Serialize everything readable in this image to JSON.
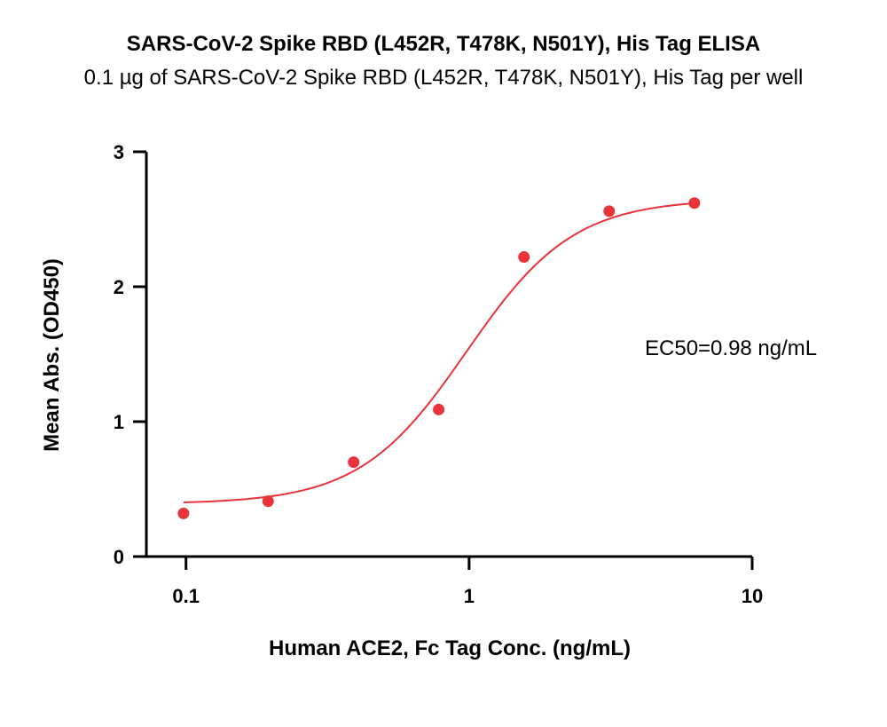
{
  "chart_data": {
    "type": "scatter",
    "title": "SARS-CoV-2 Spike RBD (L452R, T478K, N501Y), His Tag ELISA",
    "subtitle": "0.1 µg of SARS-CoV-2 Spike RBD (L452R, T478K, N501Y), His Tag per well",
    "xlabel": "Human ACE2, Fc Tag Conc. (ng/mL)",
    "ylabel": "Mean Abs. (OD450)",
    "x_scale": "log",
    "xlim": [
      0.065,
      10
    ],
    "ylim": [
      0,
      3
    ],
    "x_ticks": [
      0.1,
      1,
      10
    ],
    "x_tick_labels": [
      "0.1",
      "1",
      "10"
    ],
    "y_ticks": [
      0,
      1,
      2,
      3
    ],
    "y_tick_labels": [
      "0",
      "1",
      "2",
      "3"
    ],
    "grid": false,
    "series": [
      {
        "color": "#e8333a",
        "x": [
          0.098,
          0.195,
          0.391,
          0.781,
          1.563,
          3.125,
          6.25
        ],
        "y": [
          0.32,
          0.41,
          0.7,
          1.09,
          2.22,
          2.56,
          2.62
        ]
      }
    ],
    "fit": {
      "model": "4PL",
      "bottom": 0.39,
      "top": 2.65,
      "ec50": 0.98,
      "hill": 2.3,
      "color": "#e8333a"
    },
    "annotation": "EC50=0.98 ng/mL"
  }
}
